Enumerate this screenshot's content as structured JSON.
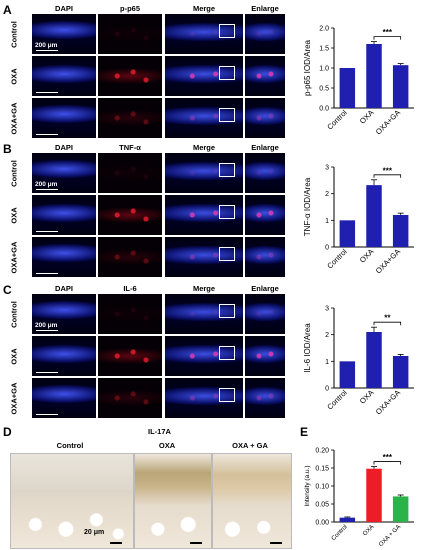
{
  "panels": {
    "A": {
      "letter": "A",
      "stain": "p-p65",
      "cols": [
        "DAPI",
        "p-p65",
        "Merge",
        "Enlarge"
      ],
      "rows": [
        "Control",
        "OXA",
        "OXA+GA"
      ],
      "scale": "200 μm"
    },
    "B": {
      "letter": "B",
      "stain": "TNF-α",
      "cols": [
        "DAPI",
        "TNF-α",
        "Merge",
        "Enlarge"
      ],
      "rows": [
        "Control",
        "OXA",
        "OXA+GA"
      ],
      "scale": "200 μm"
    },
    "C": {
      "letter": "C",
      "stain": "IL-6",
      "cols": [
        "DAPI",
        "IL-6",
        "Merge",
        "Enlarge"
      ],
      "rows": [
        "Control",
        "OXA",
        "OXA+GA"
      ],
      "scale": "200 μm"
    },
    "D": {
      "letter": "D",
      "title": "IL-17A",
      "cols": [
        "Control",
        "OXA",
        "OXA + GA"
      ],
      "scale": "20 μm"
    },
    "E": {
      "letter": "E"
    }
  },
  "colors": {
    "dapi": "#1a2bd6",
    "red": "#e8162a",
    "bar_blue": "#1f1fb0",
    "bar_red": "#ee1c24",
    "bar_green": "#2bb34a"
  },
  "chart_data": [
    {
      "type": "bar",
      "ylabel": "p-p65 IOD/Area",
      "categories": [
        "Control",
        "OXA",
        "OXA+GA"
      ],
      "values": [
        1.0,
        1.6,
        1.07
      ],
      "errors": [
        0,
        0.06,
        0.04
      ],
      "ylim": [
        0,
        2.0
      ],
      "yticks": [
        0.0,
        0.5,
        1.0,
        1.5,
        2.0
      ],
      "sig": "***",
      "sig_pair": [
        1,
        2
      ]
    },
    {
      "type": "bar",
      "ylabel": "TNF-α IOD/Area",
      "categories": [
        "Control",
        "OXA",
        "OXA+GA"
      ],
      "values": [
        1.0,
        2.32,
        1.2
      ],
      "errors": [
        0,
        0.2,
        0.07
      ],
      "ylim": [
        0,
        3
      ],
      "yticks": [
        0,
        1,
        2,
        3
      ],
      "sig": "***",
      "sig_pair": [
        1,
        2
      ]
    },
    {
      "type": "bar",
      "ylabel": "IL-6 IOD/Area",
      "categories": [
        "Control",
        "OXA",
        "OXA+GA"
      ],
      "values": [
        1.0,
        2.1,
        1.2
      ],
      "errors": [
        0,
        0.18,
        0.06
      ],
      "ylim": [
        0,
        3
      ],
      "yticks": [
        0,
        1,
        2,
        3
      ],
      "sig": "**",
      "sig_pair": [
        1,
        2
      ]
    },
    {
      "type": "bar",
      "ylabel": "Intensity (a.u.)",
      "categories": [
        "Control",
        "OXA",
        "OXA + GA"
      ],
      "values": [
        0.012,
        0.148,
        0.071
      ],
      "errors": [
        0.002,
        0.006,
        0.004
      ],
      "ylim": [
        0,
        0.2
      ],
      "yticks": [
        "0.00",
        "0.05",
        "0.10",
        "0.15",
        "0.20"
      ],
      "sig": "***",
      "sig_pair": [
        1,
        2
      ],
      "bar_colors": [
        "#1f1fb0",
        "#ee1c24",
        "#2bb34a"
      ]
    }
  ]
}
